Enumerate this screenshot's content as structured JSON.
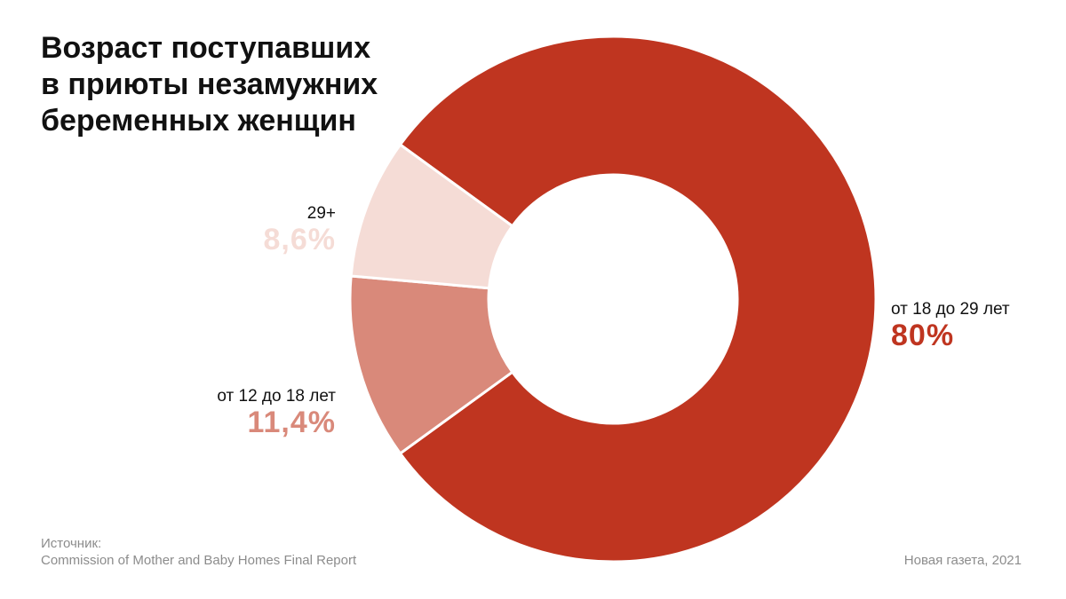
{
  "chart_data": {
    "type": "pie",
    "title": "Возраст поступавших\nв приюты незамужних\nбеременных женщин",
    "slices": [
      {
        "label": "от 18 до 29 лет",
        "value": 80,
        "value_label": "80%",
        "color": "#bf3520"
      },
      {
        "label": "от 12 до 18 лет",
        "value": 11.4,
        "value_label": "11,4%",
        "color": "#d9897a"
      },
      {
        "label": "29+",
        "value": 8.6,
        "value_label": "8,6%",
        "color": "#f5dcd6"
      }
    ],
    "donut": true,
    "legend": "none"
  },
  "source": {
    "heading": "Источник:",
    "text": "Commission of Mother and Baby Homes Final Report"
  },
  "credit": "Новая газета, 2021"
}
